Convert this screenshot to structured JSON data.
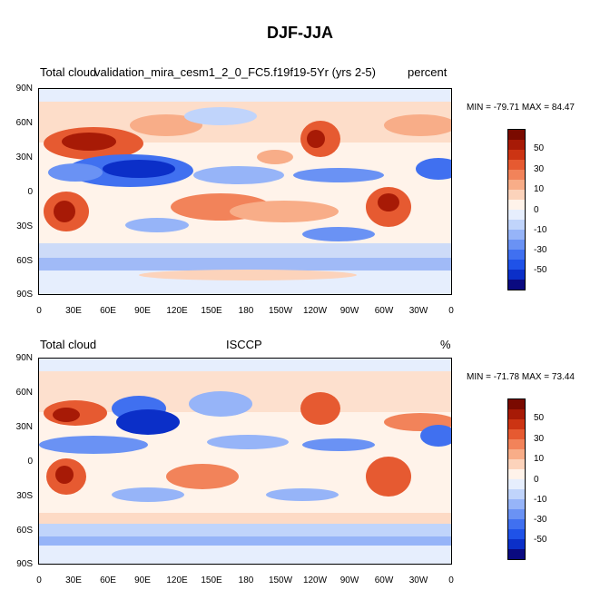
{
  "title": "DJF-JJA",
  "colors": [
    "#0a0a80",
    "#0b2fc8",
    "#1f52e8",
    "#4070f0",
    "#6a92f4",
    "#96b4f8",
    "#c0d4fb",
    "#e6eefd",
    "#fff3ea",
    "#fcd3bb",
    "#f8ad88",
    "#f2835a",
    "#e65a31",
    "#cc3413",
    "#a71a06",
    "#7a0a00"
  ],
  "colorbar_labels": [
    "50",
    "30",
    "10",
    "0",
    "-10",
    "-30",
    "-50"
  ],
  "lat_labels": [
    "90N",
    "60N",
    "30N",
    "0",
    "30S",
    "60S",
    "90S"
  ],
  "lon_labels": [
    "0",
    "30E",
    "60E",
    "90E",
    "120E",
    "150E",
    "180",
    "150W",
    "120W",
    "90W",
    "60W",
    "30W",
    "0"
  ],
  "panels": [
    {
      "left": "Total cloud",
      "center": "validation_mira_cesm1_2_0_FC5.f19f19-5Yr (yrs 2-5)",
      "right": "percent",
      "minmax": "MIN = -79.71 MAX =  84.47"
    },
    {
      "left": "Total cloud",
      "center": "ISCCP",
      "right": "%",
      "minmax": "MIN = -71.78 MAX =  73.44"
    }
  ]
}
